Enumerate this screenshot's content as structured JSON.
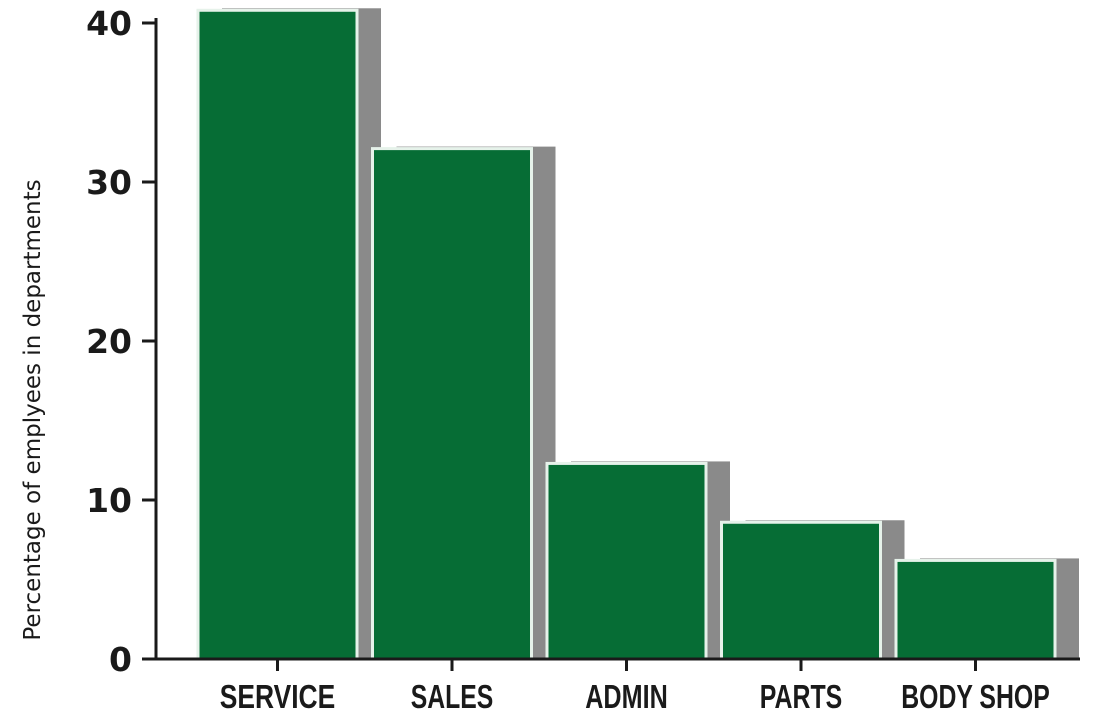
{
  "chart_data": {
    "type": "bar",
    "categories": [
      "SERVICE",
      "SALES",
      "ADMIN",
      "PARTS",
      "BODY SHOP"
    ],
    "values": [
      40.8,
      32.1,
      12.3,
      8.6,
      6.2
    ],
    "title": "",
    "xlabel": "",
    "ylabel": "Percentage of emplyees in departments",
    "ylim": [
      0,
      40
    ],
    "yticks": [
      "0",
      "10",
      "20",
      "30",
      "40"
    ],
    "grid": false,
    "colors": {
      "bar": "#066d35",
      "shadow": "#8a8a8a",
      "bar_edge": "#e6f2ea",
      "axis": "#1a1a1a"
    }
  }
}
